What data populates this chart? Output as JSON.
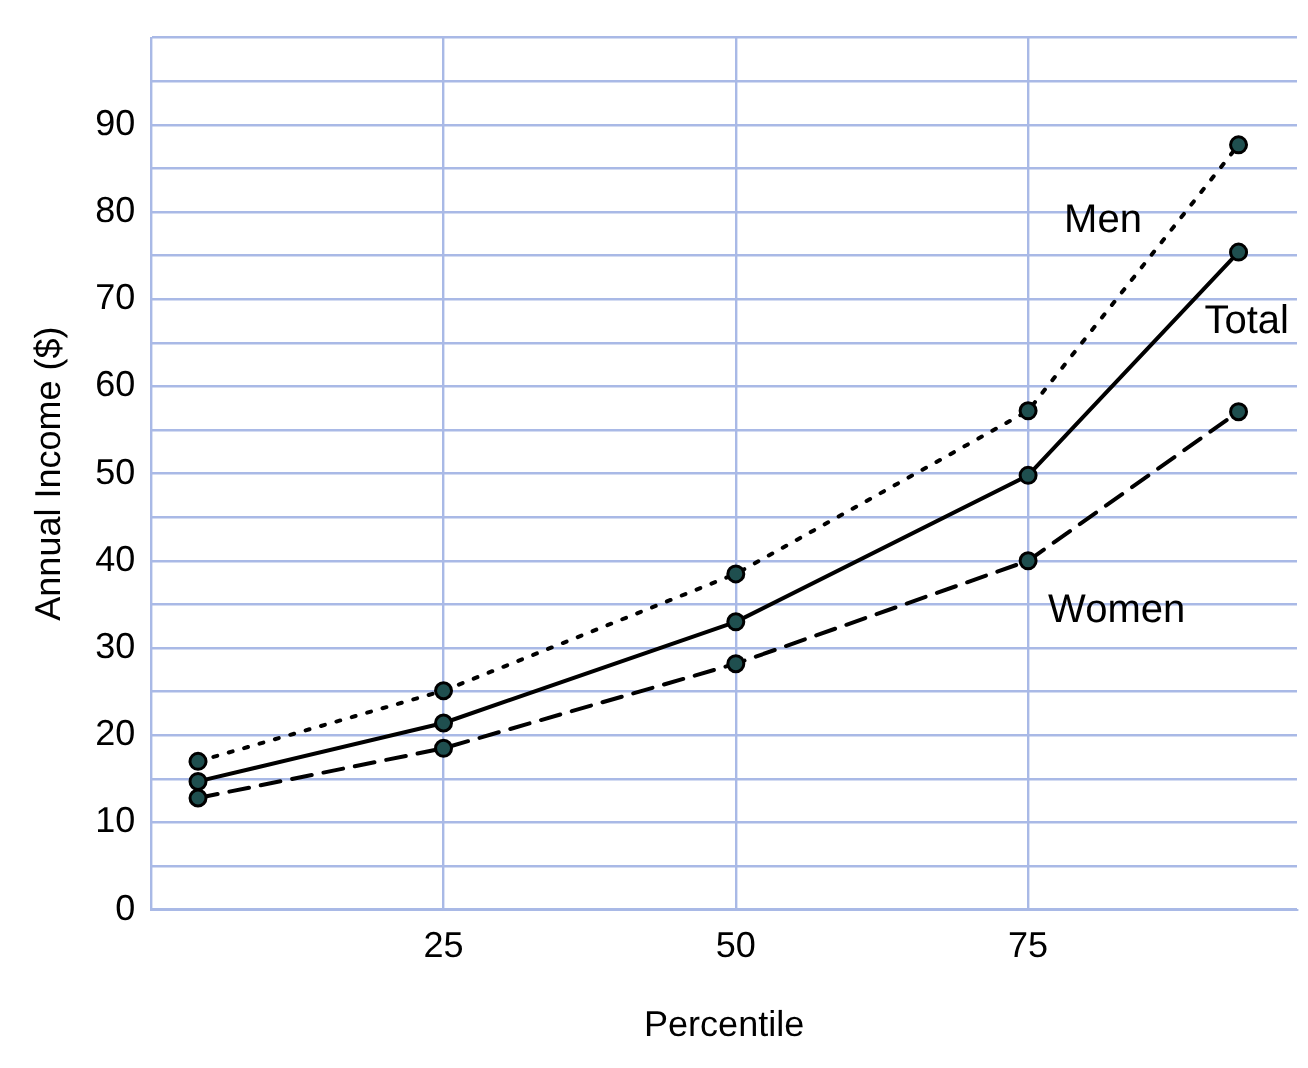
{
  "chart_data": {
    "type": "line",
    "xlabel": "Percentile",
    "ylabel": "Annual Income ($)",
    "x": [
      4,
      25,
      50,
      75,
      93
    ],
    "series": [
      {
        "name": "Men",
        "color": "#000000",
        "line_style": "dotted",
        "values": [
          17.0,
          25.1,
          38.5,
          57.2,
          87.7
        ]
      },
      {
        "name": "Total",
        "color": "#000000",
        "line_style": "solid",
        "values": [
          14.7,
          21.4,
          33.0,
          49.8,
          75.4
        ]
      },
      {
        "name": "Women",
        "color": "#000000",
        "line_style": "dashed",
        "values": [
          12.8,
          18.5,
          28.2,
          40.0,
          57.1
        ]
      }
    ],
    "xlim": [
      0,
      98
    ],
    "xticks": [
      {
        "value": 0,
        "label": null
      },
      25,
      50,
      75
    ],
    "ylim": [
      0,
      100
    ],
    "yticks": [
      0,
      {
        "value": 5,
        "label": null
      },
      10,
      {
        "value": 15,
        "label": null
      },
      20,
      {
        "value": 25,
        "label": null
      },
      30,
      {
        "value": 35,
        "label": null
      },
      40,
      {
        "value": 45,
        "label": null
      },
      50,
      {
        "value": 55,
        "label": null
      },
      60,
      {
        "value": 65,
        "label": null
      },
      70,
      {
        "value": 75,
        "label": null
      },
      80,
      {
        "value": 85,
        "label": null
      },
      90,
      {
        "value": 95,
        "label": null
      },
      {
        "value": 100,
        "label": null
      }
    ],
    "grid": true,
    "legend": false,
    "marker": "circle"
  }
}
